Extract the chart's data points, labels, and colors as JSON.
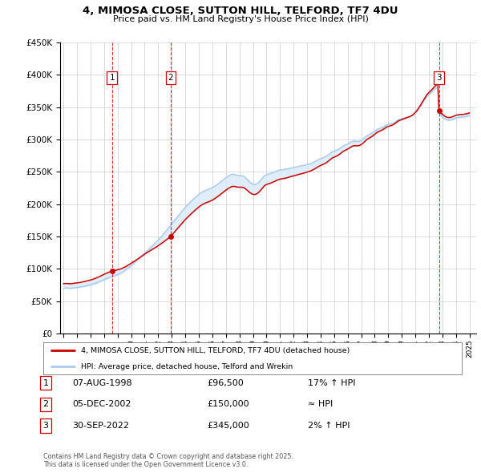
{
  "title_line1": "4, MIMOSA CLOSE, SUTTON HILL, TELFORD, TF7 4DU",
  "title_line2": "Price paid vs. HM Land Registry's House Price Index (HPI)",
  "ylim": [
    0,
    450000
  ],
  "yticks": [
    0,
    50000,
    100000,
    150000,
    200000,
    250000,
    300000,
    350000,
    400000,
    450000
  ],
  "ytick_labels": [
    "£0",
    "£50K",
    "£100K",
    "£150K",
    "£200K",
    "£250K",
    "£300K",
    "£350K",
    "£400K",
    "£450K"
  ],
  "background_color": "#ffffff",
  "plot_bg_color": "#ffffff",
  "grid_color": "#cccccc",
  "red_color": "#cc0000",
  "blue_color": "#aaccee",
  "shade_color": "#d8eaf8",
  "legend_entry1": "4, MIMOSA CLOSE, SUTTON HILL, TELFORD, TF7 4DU (detached house)",
  "legend_entry2": "HPI: Average price, detached house, Telford and Wrekin",
  "transactions": [
    {
      "label": "1",
      "date_x": 1998.58,
      "price": 96500
    },
    {
      "label": "2",
      "date_x": 2002.92,
      "price": 150000
    },
    {
      "label": "3",
      "date_x": 2022.75,
      "price": 345000
    }
  ],
  "table_rows": [
    {
      "num": "1",
      "date": "07-AUG-1998",
      "price": "£96,500",
      "rel": "17% ↑ HPI"
    },
    {
      "num": "2",
      "date": "05-DEC-2002",
      "price": "£150,000",
      "rel": "≈ HPI"
    },
    {
      "num": "3",
      "date": "30-SEP-2022",
      "price": "£345,000",
      "rel": "2% ↑ HPI"
    }
  ],
  "footnote": "Contains HM Land Registry data © Crown copyright and database right 2025.\nThis data is licensed under the Open Government Licence v3.0.",
  "hpi_years": [
    1995.0,
    1995.083,
    1995.167,
    1995.25,
    1995.333,
    1995.417,
    1995.5,
    1995.583,
    1995.667,
    1995.75,
    1995.833,
    1995.917,
    1996.0,
    1996.083,
    1996.167,
    1996.25,
    1996.333,
    1996.417,
    1996.5,
    1996.583,
    1996.667,
    1996.75,
    1996.833,
    1996.917,
    1997.0,
    1997.083,
    1997.167,
    1997.25,
    1997.333,
    1997.417,
    1997.5,
    1997.583,
    1997.667,
    1997.75,
    1997.833,
    1997.917,
    1998.0,
    1998.083,
    1998.167,
    1998.25,
    1998.333,
    1998.417,
    1998.5,
    1998.583,
    1998.667,
    1998.75,
    1998.833,
    1998.917,
    1999.0,
    1999.083,
    1999.167,
    1999.25,
    1999.333,
    1999.417,
    1999.5,
    1999.583,
    1999.667,
    1999.75,
    1999.833,
    1999.917,
    2000.0,
    2000.083,
    2000.167,
    2000.25,
    2000.333,
    2000.417,
    2000.5,
    2000.583,
    2000.667,
    2000.75,
    2000.833,
    2000.917,
    2001.0,
    2001.083,
    2001.167,
    2001.25,
    2001.333,
    2001.417,
    2001.5,
    2001.583,
    2001.667,
    2001.75,
    2001.833,
    2001.917,
    2002.0,
    2002.083,
    2002.167,
    2002.25,
    2002.333,
    2002.417,
    2002.5,
    2002.583,
    2002.667,
    2002.75,
    2002.833,
    2002.917,
    2003.0,
    2003.083,
    2003.167,
    2003.25,
    2003.333,
    2003.417,
    2003.5,
    2003.583,
    2003.667,
    2003.75,
    2003.833,
    2003.917,
    2004.0,
    2004.083,
    2004.167,
    2004.25,
    2004.333,
    2004.417,
    2004.5,
    2004.583,
    2004.667,
    2004.75,
    2004.833,
    2004.917,
    2005.0,
    2005.083,
    2005.167,
    2005.25,
    2005.333,
    2005.417,
    2005.5,
    2005.583,
    2005.667,
    2005.75,
    2005.833,
    2005.917,
    2006.0,
    2006.083,
    2006.167,
    2006.25,
    2006.333,
    2006.417,
    2006.5,
    2006.583,
    2006.667,
    2006.75,
    2006.833,
    2006.917,
    2007.0,
    2007.083,
    2007.167,
    2007.25,
    2007.333,
    2007.417,
    2007.5,
    2007.583,
    2007.667,
    2007.75,
    2007.833,
    2007.917,
    2008.0,
    2008.083,
    2008.167,
    2008.25,
    2008.333,
    2008.417,
    2008.5,
    2008.583,
    2008.667,
    2008.75,
    2008.833,
    2008.917,
    2009.0,
    2009.083,
    2009.167,
    2009.25,
    2009.333,
    2009.417,
    2009.5,
    2009.583,
    2009.667,
    2009.75,
    2009.833,
    2009.917,
    2010.0,
    2010.083,
    2010.167,
    2010.25,
    2010.333,
    2010.417,
    2010.5,
    2010.583,
    2010.667,
    2010.75,
    2010.833,
    2010.917,
    2011.0,
    2011.083,
    2011.167,
    2011.25,
    2011.333,
    2011.417,
    2011.5,
    2011.583,
    2011.667,
    2011.75,
    2011.833,
    2011.917,
    2012.0,
    2012.083,
    2012.167,
    2012.25,
    2012.333,
    2012.417,
    2012.5,
    2012.583,
    2012.667,
    2012.75,
    2012.833,
    2012.917,
    2013.0,
    2013.083,
    2013.167,
    2013.25,
    2013.333,
    2013.417,
    2013.5,
    2013.583,
    2013.667,
    2013.75,
    2013.833,
    2013.917,
    2014.0,
    2014.083,
    2014.167,
    2014.25,
    2014.333,
    2014.417,
    2014.5,
    2014.583,
    2014.667,
    2014.75,
    2014.833,
    2014.917,
    2015.0,
    2015.083,
    2015.167,
    2015.25,
    2015.333,
    2015.417,
    2015.5,
    2015.583,
    2015.667,
    2015.75,
    2015.833,
    2015.917,
    2016.0,
    2016.083,
    2016.167,
    2016.25,
    2016.333,
    2016.417,
    2016.5,
    2016.583,
    2016.667,
    2016.75,
    2016.833,
    2016.917,
    2017.0,
    2017.083,
    2017.167,
    2017.25,
    2017.333,
    2017.417,
    2017.5,
    2017.583,
    2017.667,
    2017.75,
    2017.833,
    2017.917,
    2018.0,
    2018.083,
    2018.167,
    2018.25,
    2018.333,
    2018.417,
    2018.5,
    2018.583,
    2018.667,
    2018.75,
    2018.833,
    2018.917,
    2019.0,
    2019.083,
    2019.167,
    2019.25,
    2019.333,
    2019.417,
    2019.5,
    2019.583,
    2019.667,
    2019.75,
    2019.833,
    2019.917,
    2020.0,
    2020.083,
    2020.167,
    2020.25,
    2020.333,
    2020.417,
    2020.5,
    2020.583,
    2020.667,
    2020.75,
    2020.833,
    2020.917,
    2021.0,
    2021.083,
    2021.167,
    2021.25,
    2021.333,
    2021.417,
    2021.5,
    2021.583,
    2021.667,
    2021.75,
    2021.833,
    2021.917,
    2022.0,
    2022.083,
    2022.167,
    2022.25,
    2022.333,
    2022.417,
    2022.5,
    2022.583,
    2022.667,
    2022.75,
    2022.833,
    2022.917,
    2023.0,
    2023.083,
    2023.167,
    2023.25,
    2023.333,
    2023.417,
    2023.5,
    2023.583,
    2023.667,
    2023.75,
    2023.833,
    2023.917,
    2024.0,
    2024.083,
    2024.167,
    2024.25,
    2024.333,
    2024.417,
    2024.5,
    2024.583,
    2024.667,
    2024.75,
    2024.833,
    2024.917,
    2025.0
  ],
  "hpi_values": [
    70000,
    70200,
    70400,
    70300,
    70100,
    70000,
    69900,
    70100,
    70300,
    70500,
    70800,
    71000,
    71200,
    71400,
    71600,
    71900,
    72200,
    72500,
    72800,
    73200,
    73600,
    74000,
    74400,
    74800,
    75200,
    75700,
    76200,
    76800,
    77400,
    78000,
    78700,
    79400,
    80100,
    80900,
    81700,
    82500,
    83300,
    84000,
    84700,
    85400,
    86100,
    86700,
    87300,
    87800,
    88400,
    89100,
    89800,
    90400,
    91100,
    91900,
    92700,
    93600,
    94600,
    95700,
    96900,
    98100,
    99400,
    100800,
    102100,
    103500,
    105000,
    106500,
    108000,
    109600,
    111100,
    112700,
    114300,
    115900,
    117600,
    119300,
    121000,
    122700,
    124400,
    126100,
    127700,
    129300,
    130900,
    132500,
    134100,
    135700,
    137400,
    139100,
    140800,
    142600,
    144400,
    146300,
    148300,
    150200,
    152300,
    154300,
    156400,
    158500,
    160600,
    162800,
    165000,
    167200,
    169400,
    171600,
    173700,
    175900,
    178100,
    180300,
    182400,
    184600,
    186800,
    189000,
    191100,
    193100,
    195100,
    197000,
    198800,
    200700,
    202500,
    204200,
    205900,
    207500,
    209100,
    210700,
    212200,
    213700,
    215200,
    216500,
    217800,
    218900,
    219900,
    220700,
    221400,
    222000,
    222600,
    223200,
    223900,
    224700,
    225600,
    226600,
    227700,
    228800,
    230000,
    231300,
    232600,
    234000,
    235400,
    236800,
    238200,
    239500,
    240800,
    242000,
    243200,
    244300,
    245200,
    245900,
    246300,
    246300,
    245900,
    245400,
    244800,
    244500,
    244200,
    244100,
    244000,
    243600,
    242800,
    241500,
    239900,
    238100,
    236300,
    234600,
    233100,
    231900,
    231000,
    230500,
    230500,
    231000,
    232100,
    233600,
    235300,
    237300,
    239400,
    241500,
    243400,
    244800,
    245600,
    246200,
    246700,
    247100,
    247700,
    248300,
    249000,
    249800,
    250600,
    251300,
    251900,
    252400,
    252900,
    253100,
    253300,
    253500,
    253700,
    254000,
    254300,
    254800,
    255300,
    255700,
    256000,
    256300,
    256700,
    257100,
    257500,
    257900,
    258300,
    258600,
    258900,
    259200,
    259600,
    260000,
    260400,
    260800,
    261300,
    261700,
    262100,
    262700,
    263300,
    264100,
    264900,
    265900,
    266900,
    267900,
    268800,
    269600,
    270300,
    271000,
    271600,
    272300,
    273100,
    274000,
    275200,
    276500,
    277900,
    279300,
    280500,
    281400,
    282100,
    282700,
    283300,
    284100,
    285100,
    286200,
    287500,
    288800,
    290000,
    290900,
    291600,
    292300,
    293100,
    294100,
    295200,
    296200,
    297000,
    297500,
    297600,
    297400,
    297100,
    297000,
    297200,
    297700,
    298600,
    299800,
    301200,
    302700,
    304200,
    305600,
    306700,
    307600,
    308400,
    309300,
    310400,
    311700,
    313100,
    314400,
    315400,
    316200,
    316900,
    317500,
    318200,
    319000,
    320000,
    321100,
    322100,
    322900,
    323400,
    323800,
    324100,
    324500,
    325100,
    325900,
    327000,
    328200,
    329400,
    330400,
    331100,
    331600,
    332000,
    332500,
    333000,
    333600,
    334200,
    334700,
    335100,
    335600,
    336200,
    337000,
    338100,
    339500,
    341100,
    343000,
    345200,
    347600,
    350100,
    352700,
    355400,
    358200,
    361000,
    363700,
    366100,
    368100,
    369600,
    371000,
    372500,
    374200,
    376000,
    377900,
    379600,
    380700,
    381000,
    340800,
    339000,
    337000,
    335000,
    333500,
    332200,
    331200,
    330500,
    330100,
    330000,
    330200,
    330600,
    331200,
    331900,
    332700,
    333400,
    333900,
    334200,
    334400,
    334500,
    334600,
    334700,
    334900,
    335200,
    335500,
    335900,
    336400,
    337000
  ],
  "xlim": [
    1994.75,
    2025.5
  ],
  "xtick_years": [
    1995,
    1996,
    1997,
    1998,
    1999,
    2000,
    2001,
    2002,
    2003,
    2004,
    2005,
    2006,
    2007,
    2008,
    2009,
    2010,
    2011,
    2012,
    2013,
    2014,
    2015,
    2016,
    2017,
    2018,
    2019,
    2020,
    2021,
    2022,
    2023,
    2024,
    2025
  ]
}
